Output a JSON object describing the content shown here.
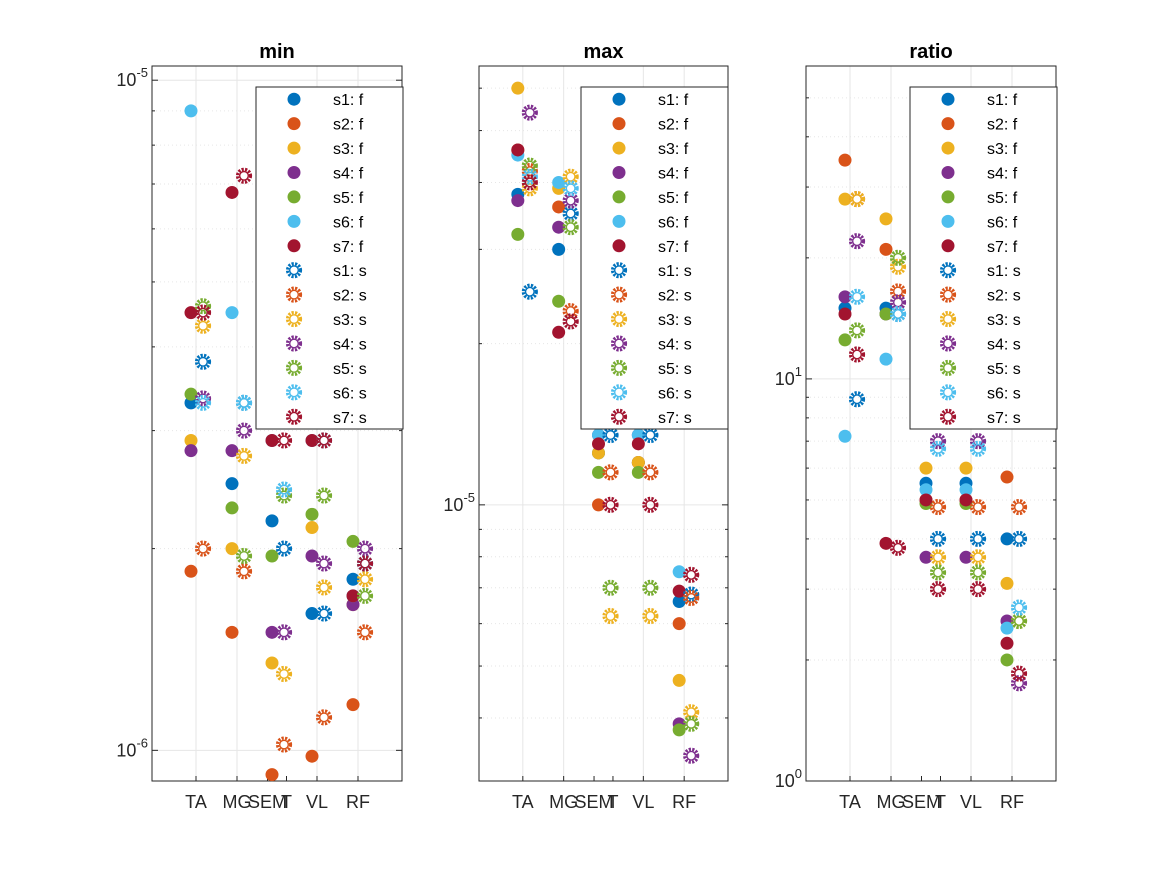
{
  "chart_data": [
    {
      "type": "scatter",
      "title": "min",
      "categories": [
        "TA",
        "MG",
        "SEM",
        "T",
        "VL",
        "RF"
      ],
      "category_tick_labels": [
        "TA",
        "MG",
        "SEM",
        "T",
        "VL",
        "RF"
      ],
      "y_scale": "log",
      "ylim": [
        9e-07,
        1.05e-05
      ],
      "y_tick_labels": [
        {
          "value": 1e-06,
          "base": "10",
          "exp": "-6"
        },
        {
          "value": 1e-05,
          "base": "10",
          "exp": "-5"
        }
      ],
      "grid": true,
      "legend_placement": "top-right",
      "series": [
        {
          "name": "s1: f",
          "color": "#0072BD",
          "marker": "filled",
          "values": [
            3.3e-06,
            2.5e-06,
            2.2e-06,
            1.6e-06,
            1.8e-06
          ]
        },
        {
          "name": "s2: f",
          "color": "#D95319",
          "marker": "filled",
          "values": [
            1.85e-06,
            1.5e-06,
            9.2e-07,
            9.8e-07,
            1.17e-06
          ]
        },
        {
          "name": "s3: f",
          "color": "#EDB120",
          "marker": "filled",
          "values": [
            2.9e-06,
            2e-06,
            1.35e-06,
            2.15e-06,
            1.65e-06
          ]
        },
        {
          "name": "s4: f",
          "color": "#7E2F8E",
          "marker": "filled",
          "values": [
            2.8e-06,
            2.8e-06,
            1.5e-06,
            1.95e-06,
            1.65e-06
          ]
        },
        {
          "name": "s5: f",
          "color": "#77AC30",
          "marker": "filled",
          "values": [
            3.4e-06,
            2.3e-06,
            1.95e-06,
            2.25e-06,
            2.05e-06
          ]
        },
        {
          "name": "s6: f",
          "color": "#4DBEEE",
          "marker": "filled",
          "values": [
            9e-06,
            4.5e-06,
            2.9e-06,
            2.9e-06,
            1.7e-06
          ]
        },
        {
          "name": "s7: f",
          "color": "#A2142F",
          "marker": "filled",
          "values": [
            4.5e-06,
            6.8e-06,
            2.9e-06,
            2.9e-06,
            1.7e-06
          ]
        },
        {
          "name": "s1: s",
          "color": "#0072BD",
          "marker": "open",
          "values": [
            3.8e-06,
            3.3e-06,
            2e-06,
            1.6e-06,
            1.9e-06
          ]
        },
        {
          "name": "s2: s",
          "color": "#D95319",
          "marker": "open",
          "values": [
            2e-06,
            1.85e-06,
            1.02e-06,
            1.12e-06,
            1.5e-06
          ]
        },
        {
          "name": "s3: s",
          "color": "#EDB120",
          "marker": "open",
          "values": [
            4.3e-06,
            2.75e-06,
            1.3e-06,
            1.75e-06,
            1.8e-06
          ]
        },
        {
          "name": "s4: s",
          "color": "#7E2F8E",
          "marker": "open",
          "values": [
            3.35e-06,
            3e-06,
            1.5e-06,
            1.9e-06,
            2e-06
          ]
        },
        {
          "name": "s5: s",
          "color": "#77AC30",
          "marker": "open",
          "values": [
            4.6e-06,
            1.95e-06,
            2.4e-06,
            2.4e-06,
            1.7e-06
          ]
        },
        {
          "name": "s6: s",
          "color": "#4DBEEE",
          "marker": "open",
          "values": [
            3.3e-06,
            3.3e-06,
            2.45e-06,
            2.9e-06,
            1.9e-06
          ]
        },
        {
          "name": "s7: s",
          "color": "#A2142F",
          "marker": "open",
          "values": [
            4.5e-06,
            7.2e-06,
            2.9e-06,
            2.9e-06,
            1.9e-06
          ]
        }
      ]
    },
    {
      "type": "scatter",
      "title": "max",
      "categories": [
        "TA",
        "MG",
        "SEM",
        "T",
        "VL",
        "RF"
      ],
      "category_tick_labels": [
        "TA",
        "MG",
        "SEM",
        "T",
        "VL",
        "RF"
      ],
      "y_scale": "log",
      "ylim": [
        3.05e-06,
        6.6e-05
      ],
      "y_tick_labels": [
        {
          "value": 1e-05,
          "base": "10",
          "exp": "-5"
        }
      ],
      "grid": true,
      "legend_placement": "top-right",
      "series": [
        {
          "name": "s1: f",
          "color": "#0072BD",
          "marker": "filled",
          "values": [
            3.8e-05,
            3e-05,
            1.25e-05,
            1.2e-05,
            6.6e-06
          ]
        },
        {
          "name": "s2: f",
          "color": "#D95319",
          "marker": "filled",
          "values": [
            4.6e-05,
            3.6e-05,
            1e-05,
            1.2e-05,
            6e-06
          ]
        },
        {
          "name": "s3: f",
          "color": "#EDB120",
          "marker": "filled",
          "values": [
            6e-05,
            3.9e-05,
            1.25e-05,
            1.2e-05,
            4.7e-06
          ]
        },
        {
          "name": "s4: f",
          "color": "#7E2F8E",
          "marker": "filled",
          "values": [
            3.7e-05,
            3.3e-05,
            1.35e-05,
            1.35e-05,
            3.9e-06
          ]
        },
        {
          "name": "s5: f",
          "color": "#77AC30",
          "marker": "filled",
          "values": [
            3.2e-05,
            2.4e-05,
            1.15e-05,
            1.15e-05,
            3.8e-06
          ]
        },
        {
          "name": "s6: f",
          "color": "#4DBEEE",
          "marker": "filled",
          "values": [
            4.5e-05,
            4e-05,
            1.35e-05,
            1.35e-05,
            7.5e-06
          ]
        },
        {
          "name": "s7: f",
          "color": "#A2142F",
          "marker": "filled",
          "values": [
            4.6e-05,
            2.1e-05,
            1.3e-05,
            1.3e-05,
            6.9e-06
          ]
        },
        {
          "name": "s1: s",
          "color": "#0072BD",
          "marker": "open",
          "values": [
            2.5e-05,
            3.5e-05,
            1.35e-05,
            1.35e-05,
            6.8e-06
          ]
        },
        {
          "name": "s2: s",
          "color": "#D95319",
          "marker": "open",
          "values": [
            4.2e-05,
            2.3e-05,
            1.15e-05,
            1.15e-05,
            6.7e-06
          ]
        },
        {
          "name": "s3: s",
          "color": "#EDB120",
          "marker": "open",
          "values": [
            3.9e-05,
            4.1e-05,
            6.2e-06,
            6.2e-06,
            4.1e-06
          ]
        },
        {
          "name": "s4: s",
          "color": "#7E2F8E",
          "marker": "open",
          "values": [
            5.4e-05,
            3.7e-05,
            1.55e-05,
            1.55e-05,
            3.4e-06
          ]
        },
        {
          "name": "s5: s",
          "color": "#77AC30",
          "marker": "open",
          "values": [
            4.3e-05,
            3.3e-05,
            7e-06,
            7e-06,
            3.9e-06
          ]
        },
        {
          "name": "s6: s",
          "color": "#4DBEEE",
          "marker": "open",
          "values": [
            4.1e-05,
            3.9e-05,
            1.6e-05,
            1.6e-05,
            1.6e-05
          ]
        },
        {
          "name": "s7: s",
          "color": "#A2142F",
          "marker": "open",
          "values": [
            4e-05,
            2.2e-05,
            1e-05,
            1e-05,
            7.4e-06
          ]
        }
      ]
    },
    {
      "type": "scatter",
      "title": "ratio",
      "categories": [
        "TA",
        "MG",
        "SEM",
        "T",
        "VL",
        "RF"
      ],
      "category_tick_labels": [
        "TA",
        "MG",
        "SEM",
        "T",
        "VL",
        "RF"
      ],
      "y_scale": "log",
      "ylim": [
        1,
        60
      ],
      "y_tick_labels": [
        {
          "value": 1,
          "base": "10",
          "exp": "0"
        },
        {
          "value": 10,
          "base": "10",
          "exp": "1"
        }
      ],
      "grid": true,
      "legend_placement": "top-right",
      "series": [
        {
          "name": "s1: f",
          "color": "#0072BD",
          "marker": "filled",
          "values": [
            15,
            15,
            5.5,
            5.5,
            4.0
          ]
        },
        {
          "name": "s2: f",
          "color": "#D95319",
          "marker": "filled",
          "values": [
            35,
            21,
            5.0,
            5.0,
            5.7
          ]
        },
        {
          "name": "s3: f",
          "color": "#EDB120",
          "marker": "filled",
          "values": [
            28,
            25,
            6.0,
            6.0,
            3.1
          ]
        },
        {
          "name": "s4: f",
          "color": "#7E2F8E",
          "marker": "filled",
          "values": [
            16,
            14.5,
            3.6,
            3.6,
            2.5
          ]
        },
        {
          "name": "s5: f",
          "color": "#77AC30",
          "marker": "filled",
          "values": [
            12.5,
            14.5,
            4.9,
            4.9,
            2.0
          ]
        },
        {
          "name": "s6: f",
          "color": "#4DBEEE",
          "marker": "filled",
          "values": [
            7.2,
            11.2,
            5.3,
            5.3,
            2.4
          ]
        },
        {
          "name": "s7: f",
          "color": "#A2142F",
          "marker": "filled",
          "values": [
            14.5,
            3.9,
            5.0,
            5.0,
            2.2
          ]
        },
        {
          "name": "s1: s",
          "color": "#0072BD",
          "marker": "open",
          "values": [
            8.9,
            14.5,
            4.0,
            4.0,
            4.0
          ]
        },
        {
          "name": "s2: s",
          "color": "#D95319",
          "marker": "open",
          "values": [
            28,
            16.5,
            4.8,
            4.8,
            4.8
          ]
        },
        {
          "name": "s3: s",
          "color": "#EDB120",
          "marker": "open",
          "values": [
            28,
            19,
            3.6,
            3.6,
            2.5
          ]
        },
        {
          "name": "s4: s",
          "color": "#7E2F8E",
          "marker": "open",
          "values": [
            22,
            15.5,
            7.0,
            7.0,
            1.75
          ]
        },
        {
          "name": "s5: s",
          "color": "#77AC30",
          "marker": "open",
          "values": [
            13.2,
            20,
            3.3,
            3.3,
            2.5
          ]
        },
        {
          "name": "s6: s",
          "color": "#4DBEEE",
          "marker": "open",
          "values": [
            16,
            14.5,
            6.7,
            6.7,
            2.7
          ]
        },
        {
          "name": "s7: s",
          "color": "#A2142F",
          "marker": "open",
          "values": [
            11.5,
            3.8,
            3.0,
            3.0,
            1.85
          ]
        }
      ]
    }
  ]
}
